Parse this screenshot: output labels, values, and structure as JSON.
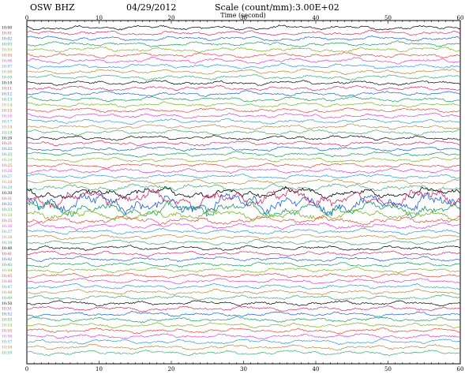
{
  "header": {
    "station": "OSW BHZ",
    "date": "04/29/2012",
    "scale": "Scale (count/mm):3.00E+02",
    "axis_title": "Time (second)"
  },
  "chart_data": {
    "type": "line",
    "title": "",
    "xlabel": "Time (second)",
    "xlim": [
      0,
      60
    ],
    "x_ticks": [
      0,
      10,
      20,
      30,
      40,
      50,
      60
    ],
    "grid": false,
    "colors": [
      "#000000",
      "#d6286a",
      "#1a5fd6",
      "#12a05a",
      "#7ab51d",
      "#e6433a",
      "#d93fd9",
      "#2c9ad6",
      "#b38a3c",
      "#3aa96d"
    ],
    "rows": [
      {
        "label": "10:00",
        "amp": 1.0
      },
      {
        "label": "10:01",
        "amp": 1.0
      },
      {
        "label": "10:02",
        "amp": 1.0
      },
      {
        "label": "10:03",
        "amp": 1.0
      },
      {
        "label": "10:04",
        "amp": 1.0
      },
      {
        "label": "10:05",
        "amp": 1.0
      },
      {
        "label": "10:06",
        "amp": 1.1
      },
      {
        "label": "10:07",
        "amp": 1.0
      },
      {
        "label": "10:08",
        "amp": 1.0
      },
      {
        "label": "10:09",
        "amp": 1.0
      },
      {
        "label": "10:10",
        "amp": 1.0
      },
      {
        "label": "10:11",
        "amp": 1.0
      },
      {
        "label": "10:12",
        "amp": 1.0
      },
      {
        "label": "10:13",
        "amp": 1.0
      },
      {
        "label": "10:14",
        "amp": 1.0
      },
      {
        "label": "10:15",
        "amp": 1.0
      },
      {
        "label": "10:16",
        "amp": 1.0
      },
      {
        "label": "10:17",
        "amp": 1.0
      },
      {
        "label": "10:18",
        "amp": 1.0
      },
      {
        "label": "10:19",
        "amp": 1.0
      },
      {
        "label": "10:20",
        "amp": 1.0
      },
      {
        "label": "10:21",
        "amp": 1.0
      },
      {
        "label": "10:22",
        "amp": 1.0
      },
      {
        "label": "10:23",
        "amp": 1.0
      },
      {
        "label": "10:24",
        "amp": 1.0
      },
      {
        "label": "10:25",
        "amp": 1.0
      },
      {
        "label": "10:26",
        "amp": 1.0
      },
      {
        "label": "10:27",
        "amp": 1.0
      },
      {
        "label": "10:28",
        "amp": 1.0
      },
      {
        "label": "10:29",
        "amp": 1.6
      },
      {
        "label": "10:30",
        "amp": 2.4
      },
      {
        "label": "10:31",
        "amp": 3.8
      },
      {
        "label": "10:32",
        "amp": 4.5
      },
      {
        "label": "10:33",
        "amp": 3.2
      },
      {
        "label": "10:34",
        "amp": 2.2
      },
      {
        "label": "10:35",
        "amp": 1.6
      },
      {
        "label": "10:36",
        "amp": 1.3
      },
      {
        "label": "10:37",
        "amp": 1.1
      },
      {
        "label": "10:38",
        "amp": 1.0
      },
      {
        "label": "10:39",
        "amp": 1.0
      },
      {
        "label": "10:40",
        "amp": 1.0
      },
      {
        "label": "10:41",
        "amp": 1.0
      },
      {
        "label": "10:42",
        "amp": 1.0
      },
      {
        "label": "10:43",
        "amp": 1.0
      },
      {
        "label": "10:44",
        "amp": 1.0
      },
      {
        "label": "10:45",
        "amp": 1.0
      },
      {
        "label": "10:46",
        "amp": 1.0
      },
      {
        "label": "10:47",
        "amp": 1.0
      },
      {
        "label": "10:48",
        "amp": 1.0
      },
      {
        "label": "10:49",
        "amp": 1.0
      },
      {
        "label": "10:50",
        "amp": 1.0
      },
      {
        "label": "10:51",
        "amp": 1.0
      },
      {
        "label": "10:52",
        "amp": 1.0
      },
      {
        "label": "10:53",
        "amp": 1.0
      },
      {
        "label": "10:54",
        "amp": 1.0
      },
      {
        "label": "10:55",
        "amp": 1.0
      },
      {
        "label": "10:56",
        "amp": 1.0
      },
      {
        "label": "10:57",
        "amp": 1.0
      },
      {
        "label": "10:58",
        "amp": 1.0
      },
      {
        "label": "10:59",
        "amp": 1.0
      }
    ]
  }
}
